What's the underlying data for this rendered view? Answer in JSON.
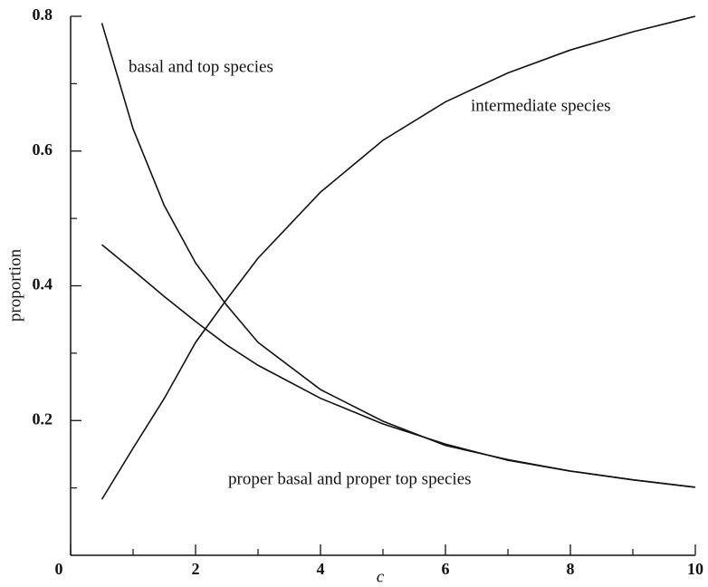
{
  "chart_data": {
    "type": "line",
    "x_label": "c",
    "y_label": "proportion",
    "x": [
      0.5,
      1,
      1.5,
      2,
      2.5,
      3,
      4,
      5,
      6,
      7,
      8,
      9,
      10
    ],
    "series": [
      {
        "name": "basal and top species",
        "color": "#111111",
        "values": [
          0.79,
          0.633,
          0.519,
          0.434,
          0.371,
          0.316,
          0.246,
          0.199,
          0.163,
          0.142,
          0.125,
          0.112,
          0.101
        ]
      },
      {
        "name": "intermediate species",
        "color": "#111111",
        "values": [
          0.083,
          0.159,
          0.233,
          0.316,
          0.38,
          0.441,
          0.539,
          0.616,
          0.673,
          0.716,
          0.75,
          0.777,
          0.8
        ]
      },
      {
        "name": "proper basal and proper top species",
        "color": "#111111",
        "values": [
          0.461,
          0.423,
          0.384,
          0.347,
          0.312,
          0.282,
          0.233,
          0.195,
          0.165,
          0.141,
          0.125,
          0.112,
          0.101
        ]
      }
    ],
    "xlim": [
      0,
      10
    ],
    "ylim": [
      0,
      0.8
    ],
    "xticks": [
      0,
      2,
      4,
      6,
      8,
      10
    ],
    "yticks": [
      0.2,
      0.4,
      0.6,
      0.8
    ],
    "xminor": [
      1,
      3,
      5,
      7,
      9
    ],
    "yminor": [
      0.1,
      0.3,
      0.5,
      0.7
    ],
    "grid": false
  }
}
